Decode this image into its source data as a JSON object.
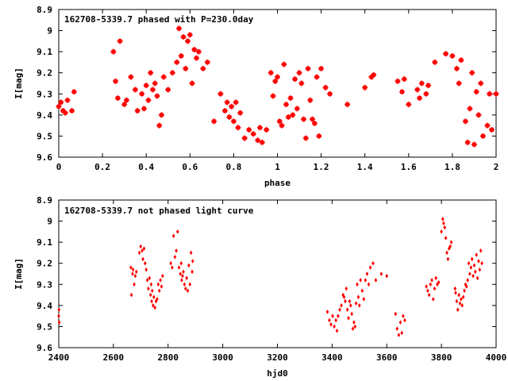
{
  "colors": {
    "marker": "#ff0000",
    "axes": "#000000",
    "background": "#ffffff"
  },
  "chart_data": [
    {
      "type": "scatter",
      "title": "162708-5339.7 phased with P=230.0day",
      "xlabel": "phase",
      "ylabel": "I[mag]",
      "xlim": [
        0,
        2
      ],
      "ylim": [
        9.6,
        8.9
      ],
      "y_inverted": true,
      "xticks": [
        "0",
        "0.2",
        "0.4",
        "0.6",
        "0.8",
        "1",
        "1.2",
        "1.4",
        "1.6",
        "1.8",
        "2"
      ],
      "yticks": [
        "8.9",
        "9",
        "9.1",
        "9.2",
        "9.3",
        "9.4",
        "9.5",
        "9.6"
      ],
      "grid": false,
      "series": [
        {
          "marker": "star",
          "x": [
            0.0,
            0.01,
            0.02,
            0.03,
            0.04,
            0.06,
            0.07,
            0.25,
            0.26,
            0.27,
            0.28,
            0.3,
            0.31,
            0.33,
            0.35,
            0.36,
            0.38,
            0.39,
            0.4,
            0.41,
            0.42,
            0.43,
            0.44,
            0.45,
            0.46,
            0.47,
            0.48,
            0.5,
            0.52,
            0.54,
            0.55,
            0.56,
            0.57,
            0.58,
            0.59,
            0.6,
            0.61,
            0.62,
            0.63,
            0.64,
            0.66,
            0.68,
            0.71,
            0.74,
            0.76,
            0.77,
            0.78,
            0.79,
            0.8,
            0.81,
            0.82,
            0.83,
            0.85,
            0.87,
            0.89,
            0.91,
            0.92,
            0.93,
            0.95,
            0.97,
            0.98,
            0.99,
            1.0,
            1.01,
            1.02,
            1.03,
            1.04,
            1.05,
            1.06,
            1.07,
            1.08,
            1.09,
            1.1,
            1.11,
            1.12,
            1.13,
            1.14,
            1.15,
            1.16,
            1.17,
            1.18,
            1.19,
            1.2,
            1.22,
            1.24,
            1.32,
            1.4,
            1.43,
            1.44,
            1.55,
            1.57,
            1.58,
            1.6,
            1.64,
            1.65,
            1.66,
            1.68,
            1.69,
            1.72,
            1.77,
            1.8,
            1.82,
            1.83,
            1.84,
            1.86,
            1.87,
            1.88,
            1.89,
            1.9,
            1.91,
            1.92,
            1.93,
            1.94,
            1.96,
            1.97,
            1.98,
            2.0
          ],
          "y": [
            9.36,
            9.34,
            9.38,
            9.39,
            9.33,
            9.38,
            9.29,
            9.1,
            9.24,
            9.32,
            9.05,
            9.35,
            9.33,
            9.22,
            9.28,
            9.38,
            9.3,
            9.37,
            9.26,
            9.33,
            9.2,
            9.28,
            9.25,
            9.31,
            9.45,
            9.4,
            9.22,
            9.28,
            9.2,
            9.15,
            8.99,
            9.12,
            9.03,
            9.18,
            9.05,
            9.02,
            9.25,
            9.09,
            9.13,
            9.1,
            9.18,
            9.15,
            9.43,
            9.3,
            9.38,
            9.34,
            9.41,
            9.36,
            9.43,
            9.34,
            9.46,
            9.39,
            9.51,
            9.47,
            9.49,
            9.52,
            9.46,
            9.53,
            9.47,
            9.2,
            9.31,
            9.24,
            9.22,
            9.43,
            9.45,
            9.16,
            9.35,
            9.41,
            9.32,
            9.4,
            9.23,
            9.37,
            9.2,
            9.25,
            9.42,
            9.51,
            9.18,
            9.33,
            9.42,
            9.44,
            9.22,
            9.5,
            9.18,
            9.27,
            9.3,
            9.35,
            9.27,
            9.22,
            9.21,
            9.24,
            9.29,
            9.23,
            9.35,
            9.28,
            9.32,
            9.25,
            9.3,
            9.26,
            9.15,
            9.11,
            9.12,
            9.18,
            9.25,
            9.14,
            9.43,
            9.53,
            9.37,
            9.2,
            9.54,
            9.29,
            9.4,
            9.25,
            9.5,
            9.45,
            9.3,
            9.47,
            9.3
          ]
        }
      ]
    },
    {
      "type": "scatter",
      "title": "162708-5339.7 not phased light curve",
      "xlabel": "hjd0",
      "ylabel": "I[mag]",
      "xlim": [
        2400,
        4000
      ],
      "ylim": [
        9.6,
        8.9
      ],
      "y_inverted": true,
      "xticks": [
        "2400",
        "2600",
        "2800",
        "3000",
        "3200",
        "3400",
        "3600",
        "3800",
        "4000"
      ],
      "yticks": [
        "8.9",
        "9",
        "9.1",
        "9.2",
        "9.3",
        "9.4",
        "9.5",
        "9.6"
      ],
      "grid": false,
      "series": [
        {
          "marker": "diamond",
          "x": [
            2400,
            2401,
            2402,
            2664,
            2666,
            2670,
            2672,
            2676,
            2680,
            2684,
            2695,
            2700,
            2705,
            2708,
            2712,
            2716,
            2720,
            2724,
            2728,
            2732,
            2736,
            2738,
            2740,
            2742,
            2745,
            2748,
            2752,
            2756,
            2760,
            2764,
            2768,
            2772,
            2776,
            2780,
            2810,
            2815,
            2820,
            2825,
            2830,
            2835,
            2840,
            2845,
            2848,
            2850,
            2853,
            2856,
            2860,
            2864,
            2868,
            2872,
            2876,
            2880,
            2884,
            2888,
            2890,
            3383,
            3390,
            3396,
            3402,
            3408,
            3414,
            3418,
            3422,
            3428,
            3434,
            3440,
            3444,
            3448,
            3452,
            3456,
            3460,
            3464,
            3468,
            3472,
            3476,
            3480,
            3484,
            3488,
            3492,
            3496,
            3500,
            3504,
            3510,
            3516,
            3522,
            3528,
            3534,
            3540,
            3550,
            3560,
            3580,
            3600,
            3632,
            3638,
            3644,
            3650,
            3655,
            3660,
            3666,
            3745,
            3750,
            3755,
            3760,
            3765,
            3770,
            3775,
            3780,
            3785,
            3790,
            3800,
            3805,
            3808,
            3812,
            3816,
            3820,
            3824,
            3828,
            3832,
            3836,
            3850,
            3852,
            3856,
            3860,
            3864,
            3868,
            3872,
            3876,
            3880,
            3884,
            3888,
            3892,
            3896,
            3900,
            3904,
            3908,
            3912,
            3916,
            3920,
            3924,
            3928,
            3932,
            3936,
            3940,
            3944,
            3948
          ],
          "y": [
            9.45,
            9.42,
            9.48,
            9.22,
            9.35,
            9.25,
            9.23,
            9.3,
            9.26,
            9.24,
            9.15,
            9.12,
            9.14,
            9.18,
            9.13,
            9.2,
            9.23,
            9.28,
            9.32,
            9.27,
            9.35,
            9.3,
            9.38,
            9.33,
            9.4,
            9.36,
            9.41,
            9.38,
            9.37,
            9.3,
            9.33,
            9.28,
            9.31,
            9.26,
            9.2,
            9.22,
            9.07,
            9.17,
            9.14,
            9.05,
            9.22,
            9.25,
            9.2,
            9.28,
            9.26,
            9.24,
            9.3,
            9.32,
            9.27,
            9.33,
            9.21,
            9.3,
            9.15,
            9.24,
            9.19,
            9.43,
            9.47,
            9.49,
            9.45,
            9.5,
            9.47,
            9.52,
            9.45,
            9.42,
            9.4,
            9.35,
            9.36,
            9.38,
            9.32,
            9.42,
            9.46,
            9.38,
            9.4,
            9.44,
            9.51,
            9.48,
            9.5,
            9.39,
            9.3,
            9.36,
            9.4,
            9.28,
            9.33,
            9.37,
            9.28,
            9.25,
            9.3,
            9.22,
            9.2,
            9.28,
            9.25,
            9.26,
            9.44,
            9.51,
            9.54,
            9.48,
            9.53,
            9.45,
            9.47,
            9.31,
            9.33,
            9.35,
            9.3,
            9.28,
            9.37,
            9.32,
            9.27,
            9.3,
            9.29,
            9.05,
            8.99,
            9.01,
            9.03,
            9.08,
            9.15,
            9.18,
            9.13,
            9.12,
            9.1,
            9.32,
            9.34,
            9.38,
            9.42,
            9.35,
            9.39,
            9.37,
            9.4,
            9.36,
            9.33,
            9.3,
            9.31,
            9.28,
            9.2,
            9.25,
            9.22,
            9.18,
            9.26,
            9.21,
            9.24,
            9.16,
            9.27,
            9.19,
            9.23,
            9.14,
            9.2
          ]
        }
      ]
    }
  ]
}
